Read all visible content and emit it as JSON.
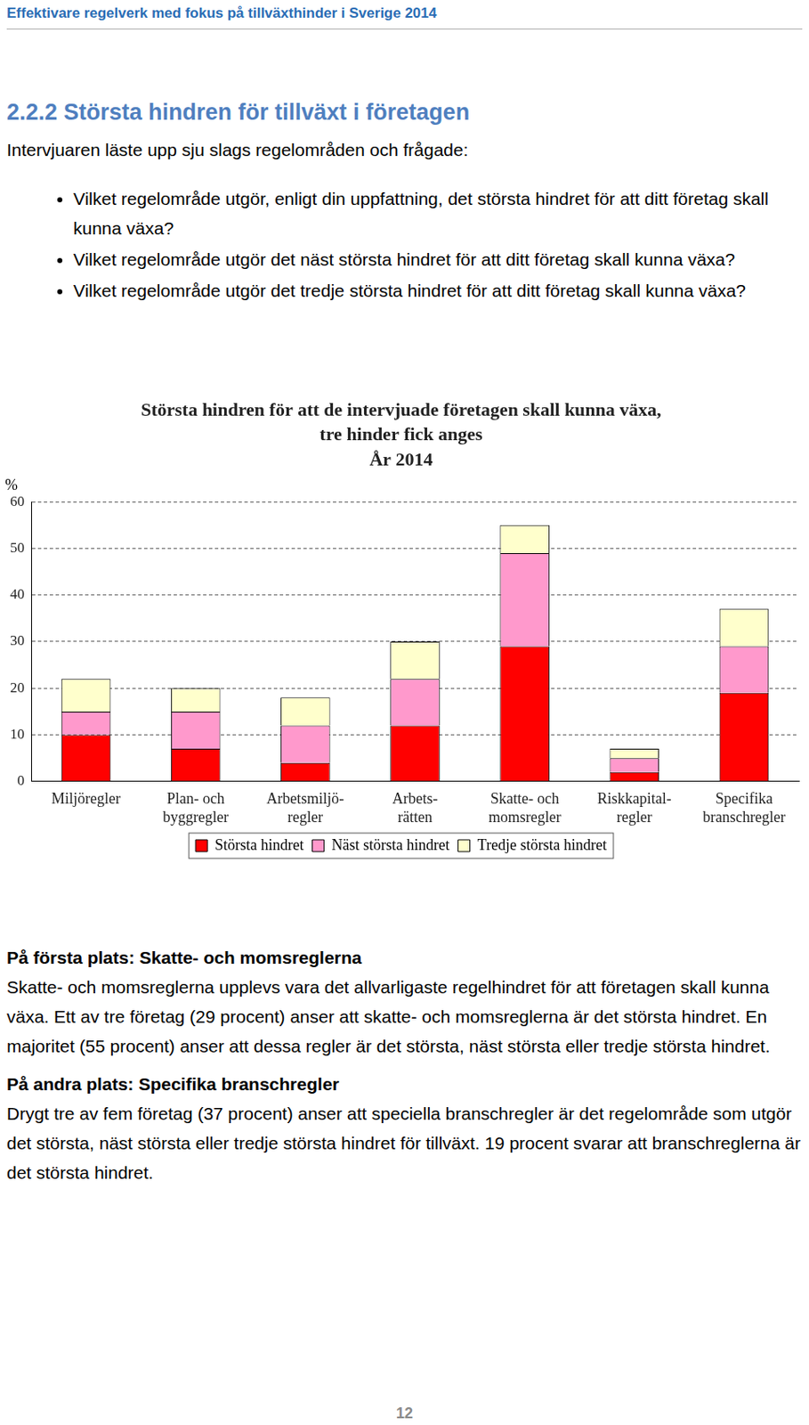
{
  "header": "Effektivare regelverk med fokus på tillväxthinder i Sverige 2014",
  "heading": "2.2.2 Största hindren för tillväxt i företagen",
  "intro": "Intervjuaren läste upp sju slags regelområden och frågade:",
  "bullets": [
    "Vilket regelområde utgör, enligt din uppfattning, det största hindret för att ditt företag skall kunna växa?",
    "Vilket regelområde utgör det näst största hindret för att ditt företag skall kunna växa?",
    "Vilket regelområde utgör det tredje största hindret för att ditt företag skall kunna växa?"
  ],
  "chart_data": {
    "type": "bar",
    "title": [
      "Största hindren för att de intervjuade företagen skall kunna växa,",
      "tre hinder fick anges",
      "År 2014"
    ],
    "y_label": "%",
    "categories": [
      [
        "Miljöregler"
      ],
      [
        "Plan- och",
        "byggregler"
      ],
      [
        "Arbetsmiljö-",
        "regler"
      ],
      [
        "Arbets-",
        "rätten"
      ],
      [
        "Skatte- och",
        "momsregler"
      ],
      [
        "Riskkapital-",
        "regler"
      ],
      [
        "Specifika",
        "branschregler"
      ]
    ],
    "series": [
      {
        "name": "Största hindret",
        "color": "#ff0000",
        "values": [
          10,
          7,
          4,
          12,
          29,
          2,
          19
        ]
      },
      {
        "name": "Näst största hindret",
        "color": "#ff99cc",
        "values": [
          5,
          8,
          8,
          10,
          20,
          3,
          10
        ]
      },
      {
        "name": "Tredje största hindret",
        "color": "#ffffcc",
        "values": [
          7,
          5,
          6,
          8,
          6,
          2,
          8
        ]
      }
    ],
    "ylim": [
      0,
      60
    ],
    "yticks": [
      0,
      10,
      20,
      30,
      40,
      50,
      60
    ],
    "grid": true,
    "stacked": true,
    "legend": "bottom"
  },
  "sections": [
    {
      "heading": "På första plats: Skatte- och momsreglerna",
      "text": "Skatte- och momsreglerna upplevs vara det allvarligaste regelhindret för att företagen skall kunna växa. Ett av tre företag (29 procent) anser att skatte- och momsreglerna är det största hindret. En majoritet (55 procent) anser att dessa regler är det största, näst största eller tredje största hindret."
    },
    {
      "heading": "På andra plats: Specifika branschregler",
      "text": "Drygt tre av fem företag (37 procent) anser att speciella branschregler är det regelområde som utgör det största, näst största eller tredje största hindret för tillväxt. 19 procent svarar att branschreglerna är det största hindret."
    }
  ],
  "page_number": "12"
}
